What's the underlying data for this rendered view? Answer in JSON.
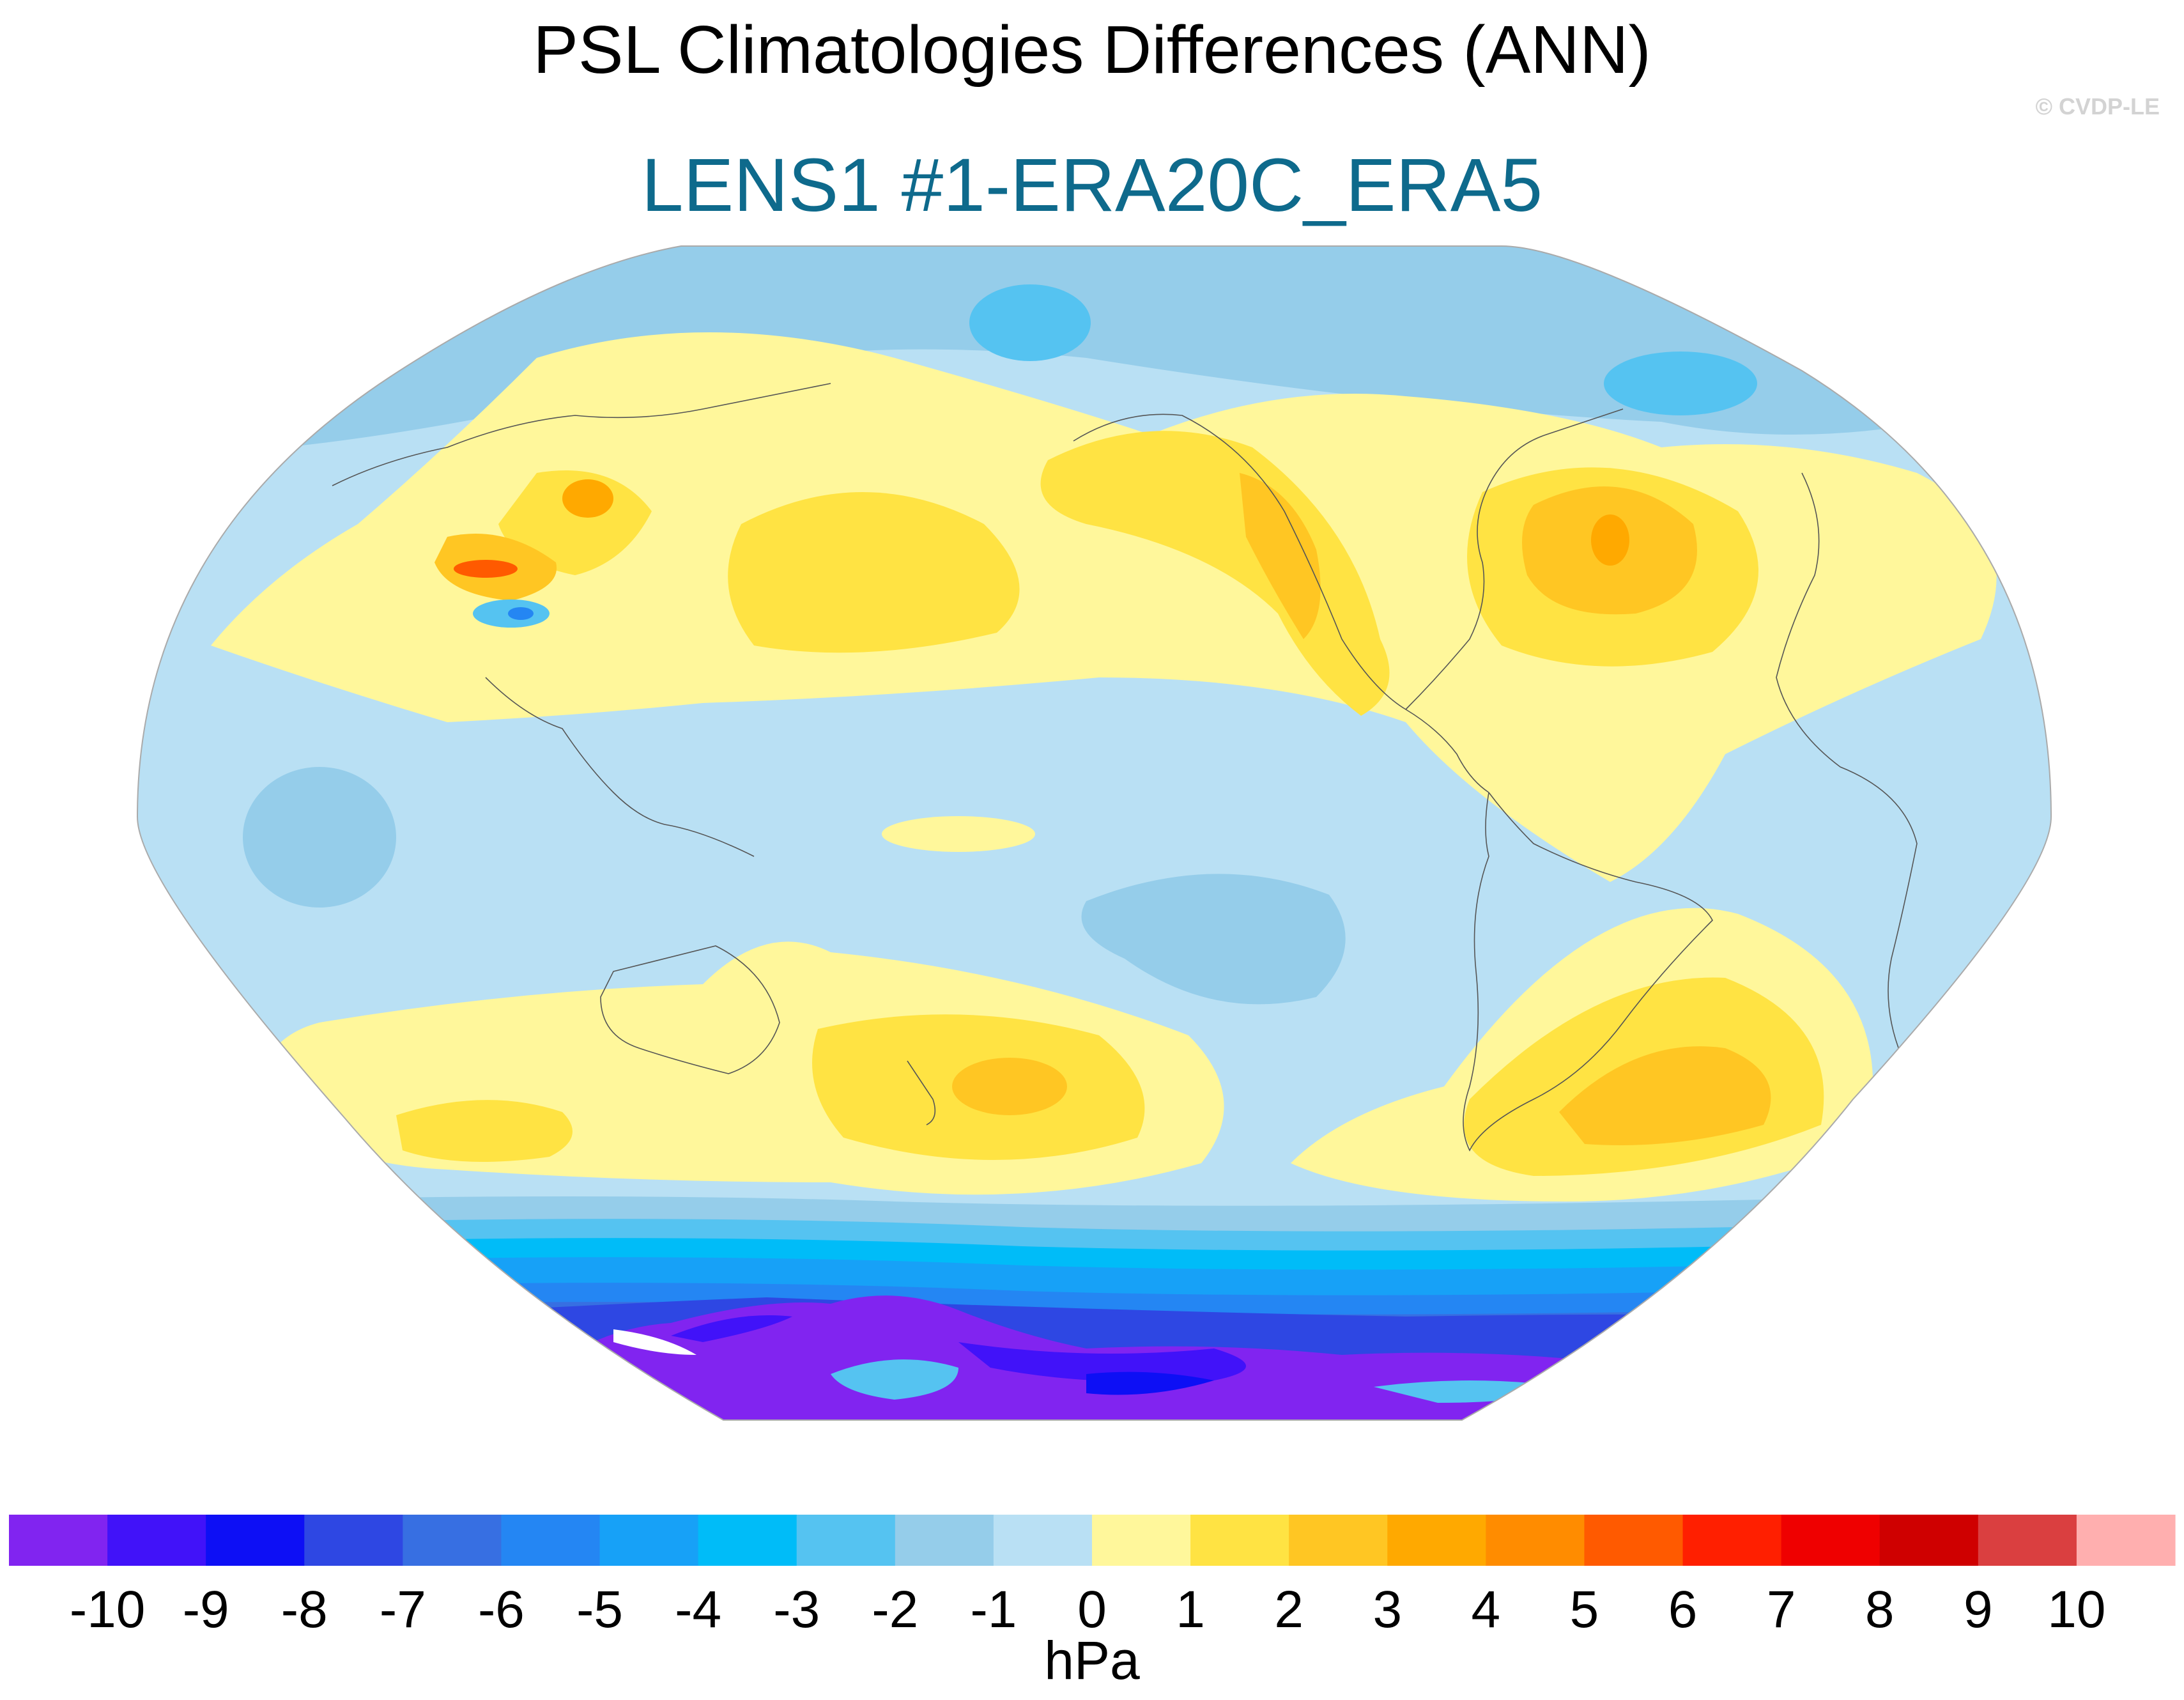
{
  "title": "PSL Climatologies Differences (ANN)",
  "subtitle": "LENS1 #1-ERA20C_ERA5",
  "watermark": "© CVDP-LE",
  "colorbar": {
    "units": "hPa",
    "tick_labels": [
      "-10",
      "-9",
      "-8",
      "-7",
      "-6",
      "-5",
      "-4",
      "-3",
      "-2",
      "-1",
      "0",
      "1",
      "2",
      "3",
      "4",
      "5",
      "6",
      "7",
      "8",
      "9",
      "10"
    ],
    "colors": [
      "#8124f0",
      "#4112f9",
      "#0d0ff5",
      "#2e47e3",
      "#376fe2",
      "#2486f3",
      "#17a1f7",
      "#00bcf8",
      "#55c3f1",
      "#95cdea",
      "#b9e0f4",
      "#fff79b",
      "#ffe343",
      "#ffc623",
      "#ffa900",
      "#ff8c00",
      "#ff5a00",
      "#ff1f00",
      "#ef0000",
      "#cf0000",
      "#da3f40",
      "#ffafaf"
    ]
  },
  "map": {
    "projection": "Robinson-like elliptical, Pacific-centered",
    "features": [
      {
        "region": "Antarctica",
        "sign": "negative",
        "max_magnitude_hPa": 10
      },
      {
        "region": "Southern Ocean",
        "sign": "negative",
        "max_magnitude_hPa": 8
      },
      {
        "region": "North Atlantic",
        "sign": "positive",
        "max_magnitude_hPa": 4
      },
      {
        "region": "South Atlantic",
        "sign": "positive",
        "max_magnitude_hPa": 3
      },
      {
        "region": "South Pacific near New Zealand",
        "sign": "positive",
        "max_magnitude_hPa": 3
      },
      {
        "region": "North Pacific",
        "sign": "positive",
        "max_magnitude_hPa": 2
      },
      {
        "region": "Western North America",
        "sign": "positive",
        "max_magnitude_hPa": 4
      },
      {
        "region": "Tibetan Plateau",
        "sign": "mixed",
        "max_magnitude_hPa": 5
      },
      {
        "region": "Arctic",
        "sign": "negative",
        "max_magnitude_hPa": 3
      },
      {
        "region": "Tropical Pacific",
        "sign": "negative",
        "max_magnitude_hPa": 2
      }
    ]
  }
}
